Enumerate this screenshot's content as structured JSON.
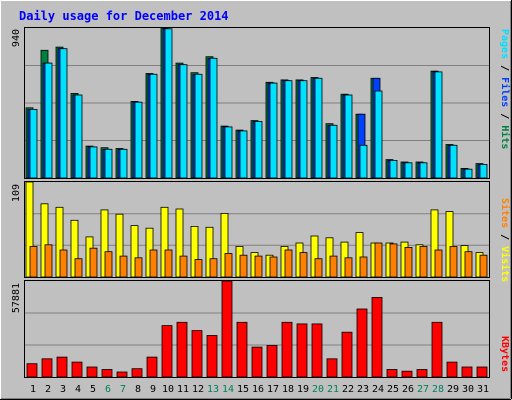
{
  "colors": {
    "background": "#c0c0c0",
    "title": "#0000ff",
    "hits": "#008040",
    "files": "#0040ff",
    "pages": "#00e0ff",
    "visits": "#ffff00",
    "sites": "#ff8000",
    "kbytes": "#ff0000",
    "weekend_day": "#00805c",
    "weekday": "#000000"
  },
  "chart_data": [
    {
      "type": "bar",
      "title": "Daily usage for December 2014",
      "ymax_label": "940",
      "ylim": [
        0,
        940
      ],
      "legend": [
        {
          "text": "Pages",
          "color": "#00e0ff"
        },
        {
          "text": " / ",
          "color": "#000000"
        },
        {
          "text": "Files",
          "color": "#0040ff"
        },
        {
          "text": " / ",
          "color": "#000000"
        },
        {
          "text": "Hits",
          "color": "#008040"
        }
      ],
      "categories": [
        "1",
        "2",
        "3",
        "4",
        "5",
        "6",
        "7",
        "8",
        "9",
        "10",
        "11",
        "12",
        "13",
        "14",
        "15",
        "16",
        "17",
        "18",
        "19",
        "20",
        "21",
        "22",
        "23",
        "24",
        "25",
        "26",
        "27",
        "28",
        "29",
        "30",
        "31"
      ],
      "weekend": [
        false,
        false,
        false,
        false,
        false,
        true,
        true,
        false,
        false,
        false,
        false,
        false,
        true,
        true,
        false,
        false,
        false,
        false,
        false,
        true,
        true,
        false,
        false,
        false,
        false,
        false,
        true,
        true,
        false,
        false,
        false
      ],
      "series": [
        {
          "name": "Hits",
          "color": "#008040",
          "values": [
            440,
            800,
            820,
            530,
            200,
            190,
            185,
            480,
            655,
            940,
            720,
            660,
            760,
            325,
            300,
            360,
            600,
            615,
            615,
            630,
            340,
            525,
            400,
            625,
            115,
            100,
            100,
            670,
            210,
            60,
            90
          ]
        },
        {
          "name": "Files",
          "color": "#0040ff",
          "values": [
            430,
            720,
            810,
            520,
            195,
            180,
            180,
            475,
            650,
            935,
            710,
            650,
            750,
            320,
            295,
            355,
            595,
            610,
            610,
            625,
            330,
            520,
            400,
            625,
            110,
            95,
            95,
            665,
            205,
            55,
            85
          ]
        },
        {
          "name": "Pages",
          "color": "#00e0ff",
          "values": [
            430,
            720,
            810,
            520,
            195,
            180,
            180,
            475,
            650,
            935,
            710,
            650,
            750,
            320,
            295,
            355,
            595,
            610,
            610,
            625,
            330,
            520,
            205,
            545,
            110,
            95,
            95,
            665,
            205,
            55,
            85
          ]
        }
      ]
    },
    {
      "type": "bar",
      "ymax_label": "109",
      "ylim": [
        0,
        109
      ],
      "legend": [
        {
          "text": "Sites",
          "color": "#ff8000"
        },
        {
          "text": " / ",
          "color": "#000000"
        },
        {
          "text": "Visits",
          "color": "#ffff00"
        }
      ],
      "categories": [
        "1",
        "2",
        "3",
        "4",
        "5",
        "6",
        "7",
        "8",
        "9",
        "10",
        "11",
        "12",
        "13",
        "14",
        "15",
        "16",
        "17",
        "18",
        "19",
        "20",
        "21",
        "22",
        "23",
        "24",
        "25",
        "26",
        "27",
        "28",
        "29",
        "30",
        "31"
      ],
      "series": [
        {
          "name": "Visits",
          "color": "#ffff00",
          "values": [
            109,
            84,
            80,
            65,
            46,
            77,
            72,
            59,
            56,
            80,
            78,
            58,
            57,
            73,
            35,
            28,
            25,
            35,
            39,
            47,
            45,
            40,
            51,
            39,
            39,
            40,
            37,
            77,
            75,
            36,
            28
          ]
        },
        {
          "name": "Sites",
          "color": "#ff8000",
          "values": [
            35,
            37,
            31,
            21,
            33,
            29,
            24,
            22,
            31,
            31,
            24,
            20,
            21,
            27,
            25,
            24,
            23,
            31,
            28,
            21,
            24,
            22,
            23,
            39,
            38,
            34,
            35,
            31,
            35,
            29,
            25
          ]
        }
      ]
    },
    {
      "type": "bar",
      "ymax_label": "57881",
      "ylim": [
        0,
        57881
      ],
      "legend": [
        {
          "text": "KBytes",
          "color": "#ff0000"
        }
      ],
      "categories": [
        "1",
        "2",
        "3",
        "4",
        "5",
        "6",
        "7",
        "8",
        "9",
        "10",
        "11",
        "12",
        "13",
        "14",
        "15",
        "16",
        "17",
        "18",
        "19",
        "20",
        "21",
        "22",
        "23",
        "24",
        "25",
        "26",
        "27",
        "28",
        "29",
        "30",
        "31"
      ],
      "series": [
        {
          "name": "KBytes",
          "color": "#ff0000",
          "values": [
            8000,
            11000,
            12000,
            9000,
            6000,
            4500,
            3000,
            5000,
            12000,
            31000,
            33000,
            28000,
            25000,
            57881,
            33000,
            18000,
            19000,
            33000,
            32000,
            32000,
            11000,
            27000,
            41000,
            48000,
            4500,
            3500,
            4500,
            33000,
            9000,
            6000,
            6000
          ]
        }
      ]
    }
  ]
}
